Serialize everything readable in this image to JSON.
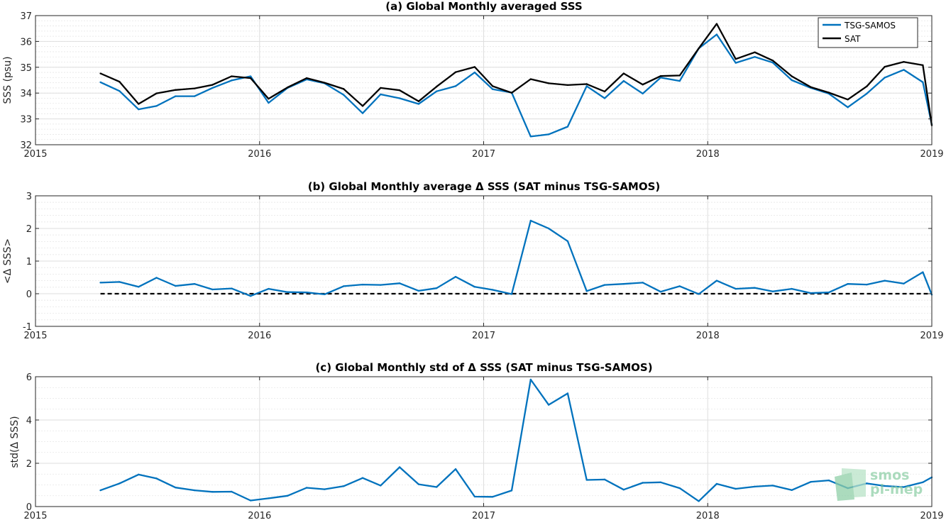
{
  "chart_data": [
    {
      "type": "line",
      "title": "(a) Global Monthly averaged SSS",
      "ylabel": "SSS (psu)",
      "xlim": [
        2015,
        2019
      ],
      "ylim": [
        32,
        37
      ],
      "xticks": [
        "2015",
        "2016",
        "2017",
        "2018",
        "2019"
      ],
      "yticks": [
        "32",
        "33",
        "34",
        "35",
        "36",
        "37"
      ],
      "grid": true,
      "legend_position": "top-right",
      "x": [
        2015.29,
        2015.375,
        2015.46,
        2015.54,
        2015.625,
        2015.71,
        2015.79,
        2015.875,
        2015.96,
        2016.04,
        2016.125,
        2016.21,
        2016.29,
        2016.375,
        2016.46,
        2016.54,
        2016.625,
        2016.71,
        2016.79,
        2016.875,
        2016.96,
        2017.04,
        2017.125,
        2017.21,
        2017.29,
        2017.375,
        2017.46,
        2017.54,
        2017.625,
        2017.71,
        2017.79,
        2017.875,
        2017.96,
        2018.04,
        2018.125,
        2018.21,
        2018.29,
        2018.375,
        2018.46,
        2018.54,
        2018.625,
        2018.71,
        2018.79,
        2018.875,
        2018.96,
        2019.0
      ],
      "series": [
        {
          "name": "TSG-SAMOS",
          "color": "#0072bd",
          "values": [
            34.42,
            34.08,
            33.37,
            33.5,
            33.88,
            33.88,
            34.2,
            34.49,
            34.65,
            33.62,
            34.2,
            34.53,
            34.38,
            33.93,
            33.22,
            33.95,
            33.8,
            33.58,
            34.07,
            34.27,
            34.8,
            34.15,
            34.02,
            32.32,
            32.4,
            32.7,
            34.27,
            33.8,
            34.47,
            33.98,
            34.6,
            34.47,
            35.73,
            36.27,
            35.17,
            35.4,
            35.18,
            34.5,
            34.2,
            33.98,
            33.45,
            33.98,
            34.6,
            34.9,
            34.42,
            32.78
          ]
        },
        {
          "name": "SAT",
          "color": "#000000",
          "values": [
            34.76,
            34.44,
            33.58,
            33.99,
            34.12,
            34.18,
            34.32,
            34.65,
            34.58,
            33.78,
            34.22,
            34.58,
            34.4,
            34.16,
            33.5,
            34.2,
            34.11,
            33.68,
            34.25,
            34.81,
            35.01,
            34.27,
            34.01,
            34.54,
            34.38,
            34.31,
            34.35,
            34.06,
            34.76,
            34.33,
            34.66,
            34.68,
            35.73,
            36.68,
            35.32,
            35.58,
            35.26,
            34.65,
            34.23,
            34.02,
            33.75,
            34.26,
            35.02,
            35.21,
            35.08,
            32.75
          ]
        }
      ]
    },
    {
      "type": "line",
      "title": "(b) Global Monthly average Δ SSS (SAT minus TSG-SAMOS)",
      "ylabel": "<Δ SSS>",
      "xlim": [
        2015,
        2019
      ],
      "ylim": [
        -1,
        3
      ],
      "xticks": [
        "2015",
        "2016",
        "2017",
        "2018",
        "2019"
      ],
      "yticks": [
        "-1",
        "0",
        "1",
        "2",
        "3"
      ],
      "grid": true,
      "reference_line": {
        "y": 0,
        "style": "dashed",
        "color": "#000000"
      },
      "x": [
        2015.29,
        2015.375,
        2015.46,
        2015.54,
        2015.625,
        2015.71,
        2015.79,
        2015.875,
        2015.96,
        2016.04,
        2016.125,
        2016.21,
        2016.29,
        2016.375,
        2016.46,
        2016.54,
        2016.625,
        2016.71,
        2016.79,
        2016.875,
        2016.96,
        2017.04,
        2017.125,
        2017.21,
        2017.29,
        2017.375,
        2017.46,
        2017.54,
        2017.625,
        2017.71,
        2017.79,
        2017.875,
        2017.96,
        2018.04,
        2018.125,
        2018.21,
        2018.29,
        2018.375,
        2018.46,
        2018.54,
        2018.625,
        2018.71,
        2018.79,
        2018.875,
        2018.96,
        2019.0
      ],
      "series": [
        {
          "color": "#0072bd",
          "values": [
            0.34,
            0.36,
            0.21,
            0.49,
            0.24,
            0.3,
            0.13,
            0.16,
            -0.07,
            0.15,
            0.05,
            0.04,
            -0.02,
            0.23,
            0.28,
            0.27,
            0.32,
            0.09,
            0.17,
            0.52,
            0.21,
            0.12,
            -0.01,
            2.24,
            2.0,
            1.61,
            0.08,
            0.27,
            0.3,
            0.34,
            0.06,
            0.23,
            -0.01,
            0.4,
            0.15,
            0.18,
            0.07,
            0.15,
            0.02,
            0.04,
            0.3,
            0.28,
            0.4,
            0.31,
            0.66,
            -0.03
          ]
        }
      ]
    },
    {
      "type": "line",
      "title": "(c) Global Monthly std of Δ SSS (SAT minus TSG-SAMOS)",
      "ylabel": "std(Δ SSS)",
      "xlim": [
        2015,
        2019
      ],
      "ylim": [
        0,
        6
      ],
      "xticks": [
        "2015",
        "2016",
        "2017",
        "2018",
        "2019"
      ],
      "yticks": [
        "0",
        "2",
        "4",
        "6"
      ],
      "grid": true,
      "x": [
        2015.29,
        2015.375,
        2015.46,
        2015.54,
        2015.625,
        2015.71,
        2015.79,
        2015.875,
        2015.96,
        2016.04,
        2016.125,
        2016.21,
        2016.29,
        2016.375,
        2016.46,
        2016.54,
        2016.625,
        2016.71,
        2016.79,
        2016.875,
        2016.96,
        2017.04,
        2017.125,
        2017.21,
        2017.29,
        2017.375,
        2017.46,
        2017.54,
        2017.625,
        2017.71,
        2017.79,
        2017.875,
        2017.96,
        2018.04,
        2018.125,
        2018.21,
        2018.29,
        2018.375,
        2018.46,
        2018.54,
        2018.625,
        2018.71,
        2018.79,
        2018.875,
        2018.96,
        2019.0
      ],
      "series": [
        {
          "color": "#0072bd",
          "values": [
            0.75,
            1.07,
            1.48,
            1.3,
            0.88,
            0.75,
            0.68,
            0.69,
            0.28,
            0.38,
            0.5,
            0.87,
            0.8,
            0.94,
            1.32,
            0.97,
            1.82,
            1.03,
            0.9,
            1.73,
            0.46,
            0.45,
            0.74,
            5.87,
            4.7,
            5.23,
            1.23,
            1.25,
            0.78,
            1.1,
            1.12,
            0.85,
            0.25,
            1.05,
            0.82,
            0.92,
            0.97,
            0.76,
            1.14,
            1.21,
            0.85,
            1.07,
            0.95,
            0.9,
            1.12,
            1.35
          ]
        }
      ]
    }
  ],
  "watermark": {
    "line1": "smos",
    "line2": "pi-mep",
    "color": "#8fcfa8"
  }
}
